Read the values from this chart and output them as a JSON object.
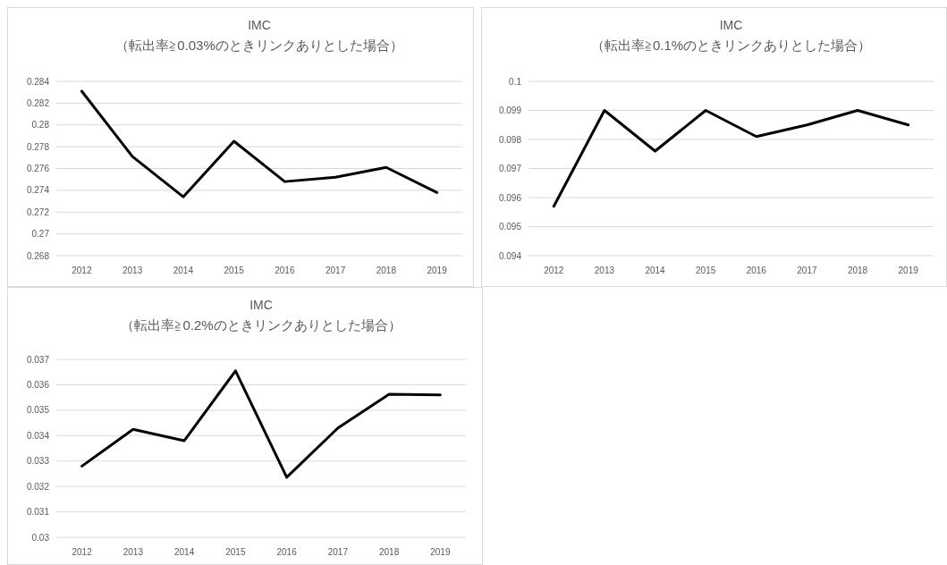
{
  "chart_data": [
    {
      "type": "line",
      "title": "IMC",
      "subtitle": "（転出率≧0.03%のときリンクありとした場合）",
      "categories": [
        "2012",
        "2013",
        "2014",
        "2015",
        "2016",
        "2017",
        "2018",
        "2019"
      ],
      "ylim": [
        0.268,
        0.284
      ],
      "yticks": [
        0.268,
        0.27,
        0.272,
        0.274,
        0.276,
        0.278,
        0.28,
        0.282,
        0.284
      ],
      "grid": "y",
      "series": [
        {
          "color": "#000000",
          "values": [
            0.2831,
            0.2771,
            0.2734,
            0.2785,
            0.2748,
            0.2752,
            0.2761,
            0.2738
          ]
        }
      ]
    },
    {
      "type": "line",
      "title": "IMC",
      "subtitle": "（転出率≧0.1%のときリンクありとした場合）",
      "categories": [
        "2012",
        "2013",
        "2014",
        "2015",
        "2016",
        "2017",
        "2018",
        "2019"
      ],
      "ylim": [
        0.094,
        0.1
      ],
      "yticks": [
        0.094,
        0.095,
        0.096,
        0.097,
        0.098,
        0.099,
        0.1
      ],
      "grid": "y",
      "series": [
        {
          "color": "#000000",
          "values": [
            0.0957,
            0.099,
            0.0976,
            0.099,
            0.0981,
            0.0985,
            0.099,
            0.0985
          ]
        }
      ]
    },
    {
      "type": "line",
      "title": "IMC",
      "subtitle": "（転出率≧0.2%のときリンクありとした場合）",
      "categories": [
        "2012",
        "2013",
        "2014",
        "2015",
        "2016",
        "2017",
        "2018",
        "2019"
      ],
      "ylim": [
        0.03,
        0.037
      ],
      "yticks": [
        0.03,
        0.031,
        0.032,
        0.033,
        0.034,
        0.035,
        0.036,
        0.037
      ],
      "grid": "y",
      "series": [
        {
          "color": "#000000",
          "values": [
            0.0328,
            0.03425,
            0.0338,
            0.03655,
            0.03236,
            0.0343,
            0.03563,
            0.0356
          ]
        }
      ]
    }
  ]
}
